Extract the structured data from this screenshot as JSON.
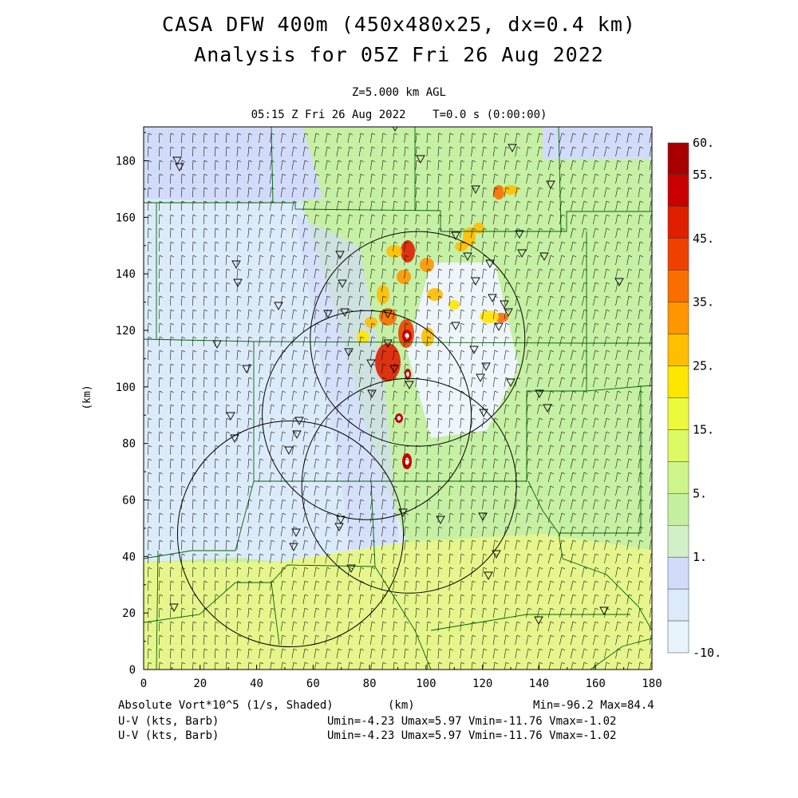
{
  "header": {
    "title_line1": "CASA DFW 400m (450x480x25, dx=0.4 km)",
    "title_line2": "Analysis for 05Z Fri 26 Aug 2022",
    "level": "Z=5.000 km AGL",
    "valid_time": "05:15 Z Fri 26 Aug 2022    T=0.0 s (0:00:00)"
  },
  "axes": {
    "xlabel": "(km)",
    "ylabel": "(km)",
    "xticks": [
      "0",
      "20",
      "40",
      "60",
      "80",
      "100",
      "120",
      "140",
      "160",
      "180"
    ],
    "yticks": [
      "0",
      "20",
      "40",
      "60",
      "80",
      "100",
      "120",
      "140",
      "160",
      "180"
    ],
    "x_range": [
      0,
      180
    ],
    "y_range": [
      0,
      192
    ]
  },
  "colorbar": {
    "labels": [
      "60.",
      "55.",
      "45.",
      "35.",
      "25.",
      "15.",
      "5.",
      "1.",
      "-10."
    ],
    "colors": [
      "#a80000",
      "#c80000",
      "#e01e00",
      "#f04000",
      "#fa6e00",
      "#ff9600",
      "#ffbe00",
      "#ffe600",
      "#ecfa3c",
      "#dcfa64",
      "#cdf58a",
      "#c4f0a0",
      "#d2f0c8",
      "#d2dcfa",
      "#dcebfa",
      "#e8f4fc"
    ]
  },
  "footer": {
    "field_label": "Absolute Vort*10^5 (1/s, Shaded)",
    "xaxis_label": "(km)",
    "minmax": "Min=-96.2 Max=84.4",
    "uv_label_1": "U-V (kts, Barb)",
    "uv_stats_1": "Umin=-4.23 Umax=5.97 Vmin=-11.76 Vmax=-1.02",
    "uv_label_2": "U-V (kts, Barb)",
    "uv_stats_2": "Umin=-4.23 Umax=5.97 Vmin=-11.76 Vmax=-1.02"
  },
  "map": {
    "field_colors": {
      "background_green": "#c6f0a4",
      "light_blue": "#dcebfa",
      "lavender": "#d2dcfa",
      "yellow_band": "#e6f68c",
      "county_line": "#006400",
      "range_ring": "#000000"
    },
    "radar_rings": [
      {
        "name": "ring-north",
        "cx_km": 97,
        "cy_km": 117,
        "r_km": 38
      },
      {
        "name": "ring-center",
        "cx_km": 79,
        "cy_km": 90,
        "r_km": 37
      },
      {
        "name": "ring-east",
        "cx_km": 94,
        "cy_km": 65,
        "r_km": 38
      },
      {
        "name": "ring-southwest",
        "cx_km": 52,
        "cy_km": 48,
        "r_km": 40
      }
    ]
  }
}
